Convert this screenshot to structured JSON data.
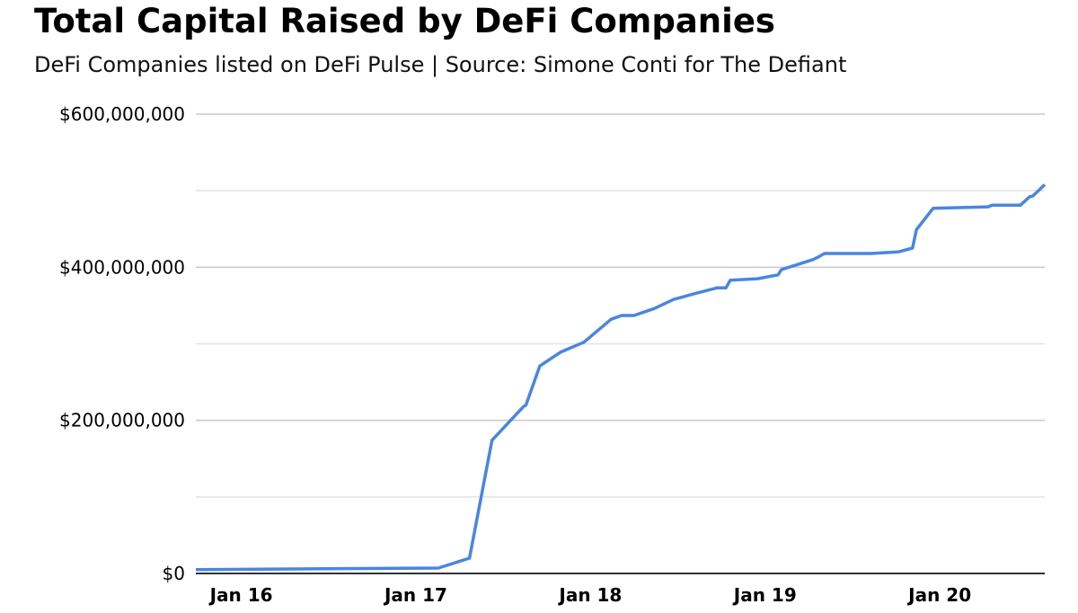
{
  "chart_data": {
    "type": "line",
    "title": "Total Capital Raised by DeFi Companies",
    "subtitle": "DeFi Companies listed on DeFi Pulse | Source: Simone Conti for The Defiant",
    "xlabel": "",
    "ylabel": "",
    "ylim": [
      0,
      600000000
    ],
    "xlim": [
      "2015-09-28",
      "2020-08-08"
    ],
    "y_ticks": [
      {
        "value": 0,
        "label": "$0"
      },
      {
        "value": 200000000,
        "label": "$200,000,000"
      },
      {
        "value": 400000000,
        "label": "$400,000,000"
      },
      {
        "value": 600000000,
        "label": "$600,000,000"
      }
    ],
    "x_ticks": [
      {
        "value": "2016-01-01",
        "label": "Jan 16"
      },
      {
        "value": "2017-01-01",
        "label": "Jan 17"
      },
      {
        "value": "2018-01-01",
        "label": "Jan 18"
      },
      {
        "value": "2019-01-01",
        "label": "Jan 19"
      },
      {
        "value": "2020-01-01",
        "label": "Jan 20"
      }
    ],
    "grid": true,
    "gridline_step": 100000000,
    "line_color": "#4a86e0",
    "series": [
      {
        "x": [
          "2015-09-28",
          "2017-02-17",
          "2017-04-23",
          "2017-06-09",
          "2017-08-14",
          "2017-08-19",
          "2017-09-17",
          "2017-10-30",
          "2017-12-18",
          "2018-02-13",
          "2018-03-07",
          "2018-04-02",
          "2018-05-14",
          "2018-06-24",
          "2018-08-04",
          "2018-09-22",
          "2018-10-11",
          "2018-10-20",
          "2018-12-16",
          "2019-01-28",
          "2019-02-04",
          "2019-04-11",
          "2019-04-24",
          "2019-05-05",
          "2019-08-11",
          "2019-10-06",
          "2019-11-05",
          "2019-11-13",
          "2019-12-18",
          "2020-04-11",
          "2020-04-19",
          "2020-06-18",
          "2020-07-07",
          "2020-07-14",
          "2020-08-08"
        ],
        "values": [
          5000000,
          7000000,
          20000000,
          174000000,
          218000000,
          220000000,
          271000000,
          289000000,
          302000000,
          332000000,
          337000000,
          337000000,
          346000000,
          358000000,
          365000000,
          373000000,
          373000000,
          383000000,
          385000000,
          390000000,
          397000000,
          410000000,
          414000000,
          418000000,
          418000000,
          420000000,
          425000000,
          449000000,
          477000000,
          479000000,
          481000000,
          481000000,
          492000000,
          493000000,
          508000000
        ]
      }
    ]
  }
}
